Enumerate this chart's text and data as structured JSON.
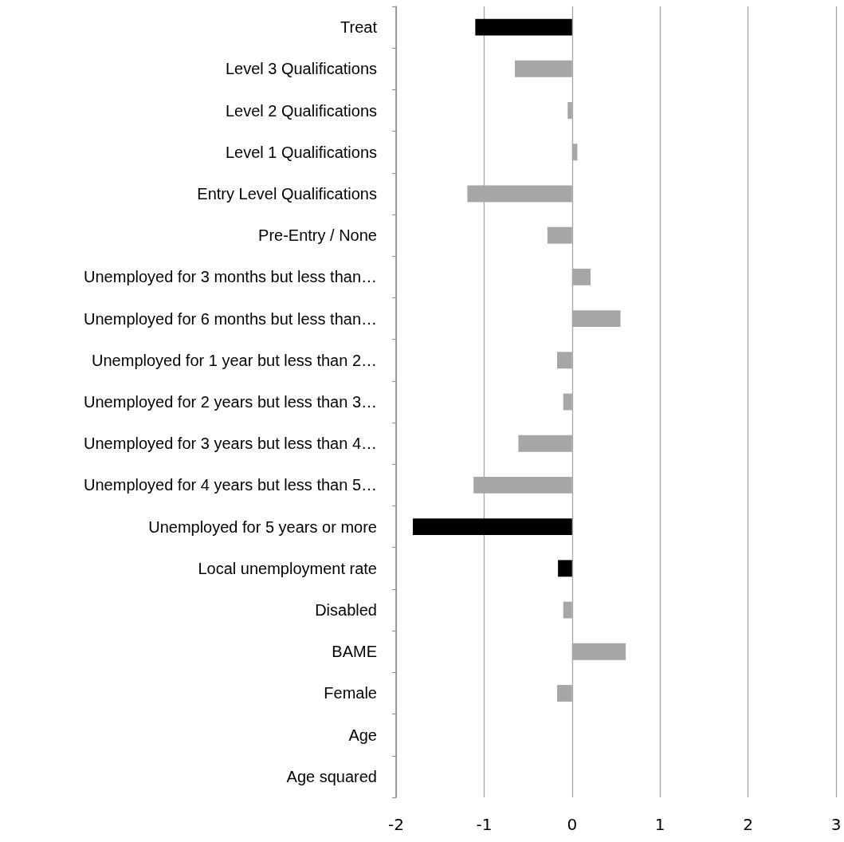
{
  "chart_data": {
    "type": "bar",
    "orientation": "horizontal",
    "categories": [
      "Treat",
      "Level 3 Qualifications",
      "Level 2 Qualifications",
      "Level 1 Qualifications",
      "Entry Level Qualifications",
      "Pre-Entry / None",
      "Unemployed for 3 months but less than…",
      "Unemployed for 6 months but less than…",
      "Unemployed for 1 year but less than 2…",
      "Unemployed for 2 years but less than 3…",
      "Unemployed for 3 years but less than 4…",
      "Unemployed for 4 years but less than 5…",
      "Unemployed for 5 years or more",
      "Local unemployment rate",
      "Disabled",
      "BAME",
      "Female",
      "Age",
      "Age squared"
    ],
    "values": [
      -1.1,
      -0.65,
      -0.05,
      0.06,
      -1.19,
      -0.28,
      0.21,
      0.55,
      -0.17,
      -0.1,
      -0.61,
      -1.12,
      -1.81,
      -0.16,
      -0.1,
      0.61,
      -0.17,
      0,
      0
    ],
    "colors": [
      "#000000",
      "#a6a6a6",
      "#a6a6a6",
      "#a6a6a6",
      "#a6a6a6",
      "#a6a6a6",
      "#a6a6a6",
      "#a6a6a6",
      "#a6a6a6",
      "#a6a6a6",
      "#a6a6a6",
      "#a6a6a6",
      "#000000",
      "#000000",
      "#a6a6a6",
      "#a6a6a6",
      "#a6a6a6",
      "#a6a6a6",
      "#a6a6a6"
    ],
    "xlim": [
      -2,
      3
    ],
    "xticks": [
      -2,
      -1,
      0,
      1,
      2,
      3
    ],
    "grid": "x"
  }
}
